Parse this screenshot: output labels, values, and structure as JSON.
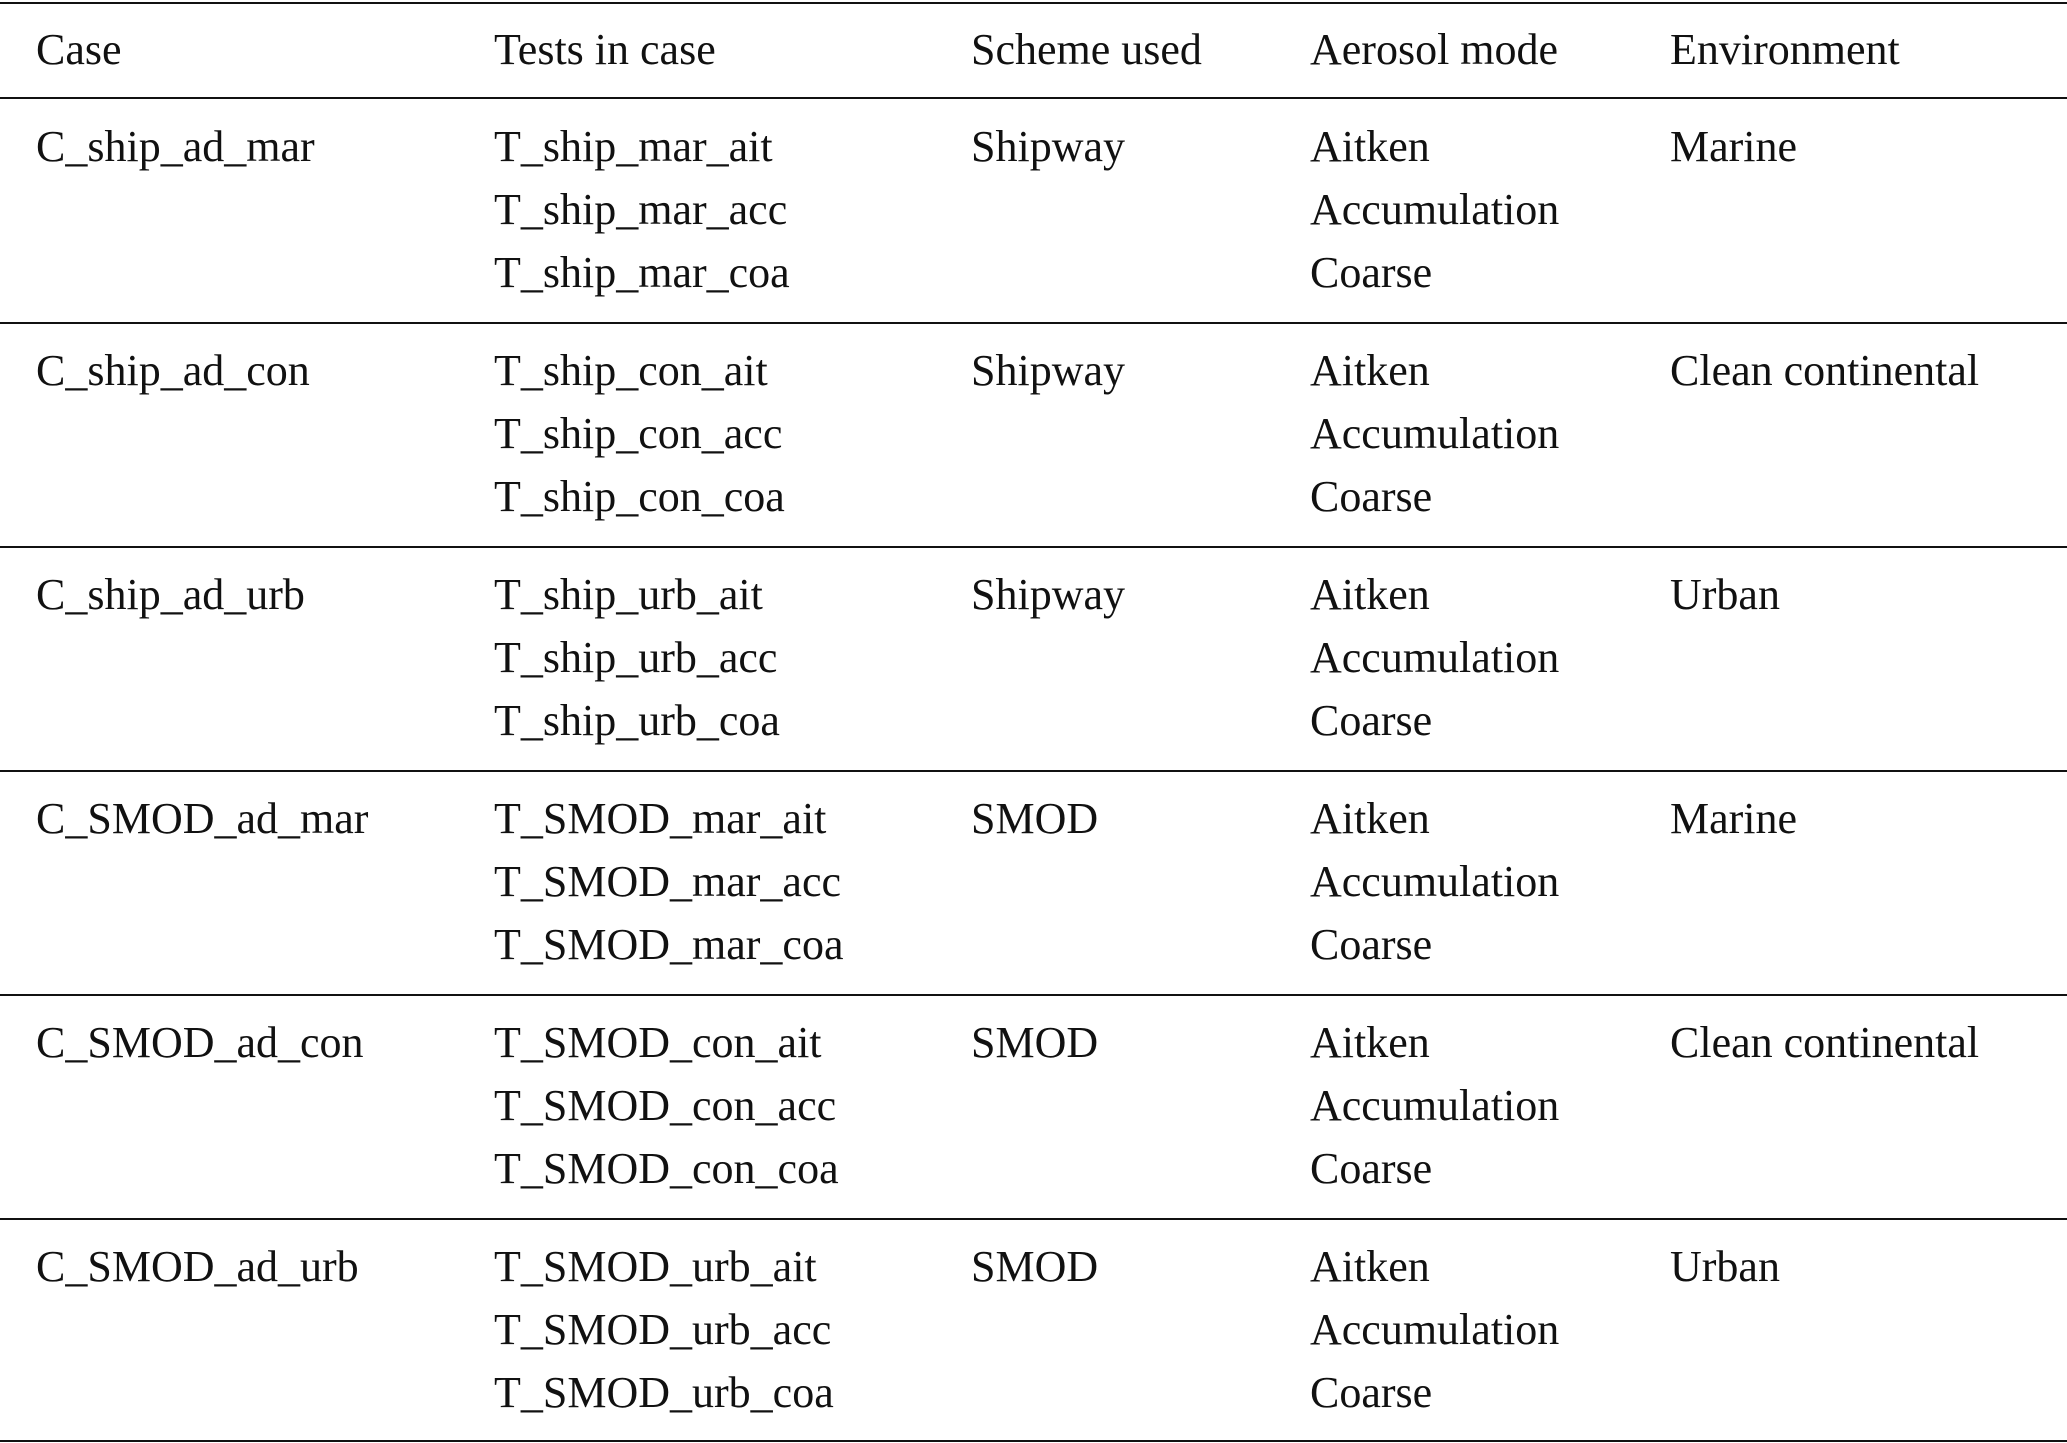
{
  "table": {
    "headers": [
      "Case",
      "Tests in case",
      "Scheme used",
      "Aerosol mode",
      "Environment"
    ],
    "rows": [
      {
        "case": "C_ship_ad_mar",
        "tests": [
          "T_ship_mar_ait",
          "T_ship_mar_acc",
          "T_ship_mar_coa"
        ],
        "scheme": "Shipway",
        "modes": [
          "Aitken",
          "Accumulation",
          "Coarse"
        ],
        "environment": "Marine"
      },
      {
        "case": "C_ship_ad_con",
        "tests": [
          "T_ship_con_ait",
          "T_ship_con_acc",
          "T_ship_con_coa"
        ],
        "scheme": "Shipway",
        "modes": [
          "Aitken",
          "Accumulation",
          "Coarse"
        ],
        "environment": "Clean continental"
      },
      {
        "case": "C_ship_ad_urb",
        "tests": [
          "T_ship_urb_ait",
          "T_ship_urb_acc",
          "T_ship_urb_coa"
        ],
        "scheme": "Shipway",
        "modes": [
          "Aitken",
          "Accumulation",
          "Coarse"
        ],
        "environment": "Urban"
      },
      {
        "case": "C_SMOD_ad_mar",
        "tests": [
          "T_SMOD_mar_ait",
          "T_SMOD_mar_acc",
          "T_SMOD_mar_coa"
        ],
        "scheme": "SMOD",
        "modes": [
          "Aitken",
          "Accumulation",
          "Coarse"
        ],
        "environment": "Marine"
      },
      {
        "case": "C_SMOD_ad_con",
        "tests": [
          "T_SMOD_con_ait",
          "T_SMOD_con_acc",
          "T_SMOD_con_coa"
        ],
        "scheme": "SMOD",
        "modes": [
          "Aitken",
          "Accumulation",
          "Coarse"
        ],
        "environment": "Clean continental"
      },
      {
        "case": "C_SMOD_ad_urb",
        "tests": [
          "T_SMOD_urb_ait",
          "T_SMOD_urb_acc",
          "T_SMOD_urb_coa"
        ],
        "scheme": "SMOD",
        "modes": [
          "Aitken",
          "Accumulation",
          "Coarse"
        ],
        "environment": "Urban"
      }
    ]
  }
}
